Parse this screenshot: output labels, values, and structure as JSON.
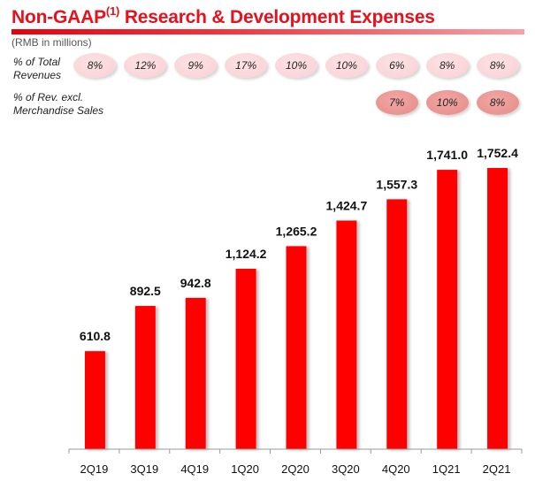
{
  "header": {
    "title_main": "Non-GAAP",
    "title_sup": "(1)",
    "title_rest": " Research & Development Expenses",
    "subtitle": "(RMB in millions)"
  },
  "ratios": {
    "total_revenues": {
      "label_line1": "% of Total",
      "label_line2": "Revenues",
      "values": [
        "8%",
        "12%",
        "9%",
        "17%",
        "10%",
        "10%",
        "6%",
        "8%",
        "8%"
      ]
    },
    "excl_merch": {
      "label_line1": "% of Rev. excl.",
      "label_line2": "Merchandise Sales",
      "periods": [
        "4Q20",
        "1Q21",
        "2Q21"
      ],
      "values": [
        "7%",
        "10%",
        "8%"
      ]
    }
  },
  "colors": {
    "bar": "#ff0000",
    "title": "#e8101c"
  },
  "chart_data": {
    "type": "bar",
    "title": "Non-GAAP Research & Development Expenses",
    "ylabel": "RMB in millions",
    "xlabel": "",
    "categories": [
      "2Q19",
      "3Q19",
      "4Q19",
      "1Q20",
      "2Q20",
      "3Q20",
      "4Q20",
      "1Q21",
      "2Q21"
    ],
    "values": [
      610.8,
      892.5,
      942.8,
      1124.2,
      1265.2,
      1424.7,
      1557.3,
      1741.0,
      1752.4
    ],
    "data_labels": [
      "610.8",
      "892.5",
      "942.8",
      "1,124.2",
      "1,265.2",
      "1,424.7",
      "1,557.3",
      "1,741.0",
      "1,752.4"
    ],
    "ylim": [
      0,
      1752.4
    ],
    "grid": false,
    "legend": "none"
  }
}
